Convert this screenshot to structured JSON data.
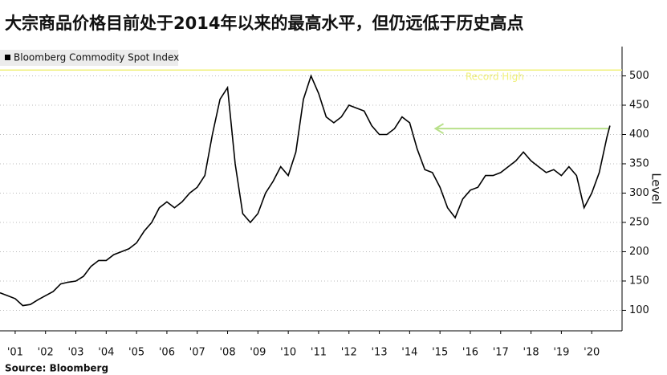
{
  "chart_data": {
    "type": "line",
    "title": "大宗商品价格目前处于2014年以来的最高水平，但仍远低于历史高点",
    "source": "Source: Bloomberg",
    "y_label": "Level",
    "series": [
      {
        "name": "Bloomberg Commodity Spot Index",
        "color": "#000000",
        "x": [
          2001.0,
          2001.25,
          2001.5,
          2001.75,
          2002.0,
          2002.25,
          2002.5,
          2002.75,
          2003.0,
          2003.25,
          2003.5,
          2003.75,
          2004.0,
          2004.25,
          2004.5,
          2004.75,
          2005.0,
          2005.25,
          2005.5,
          2005.75,
          2006.0,
          2006.25,
          2006.5,
          2006.75,
          2007.0,
          2007.25,
          2007.5,
          2007.75,
          2008.0,
          2008.25,
          2008.5,
          2008.75,
          2009.0,
          2009.25,
          2009.5,
          2009.75,
          2010.0,
          2010.25,
          2010.5,
          2010.75,
          2011.0,
          2011.25,
          2011.5,
          2011.75,
          2012.0,
          2012.25,
          2012.5,
          2012.75,
          2013.0,
          2013.25,
          2013.5,
          2013.75,
          2014.0,
          2014.25,
          2014.5,
          2014.75,
          2015.0,
          2015.25,
          2015.5,
          2015.75,
          2016.0,
          2016.25,
          2016.5,
          2016.75,
          2017.0,
          2017.25,
          2017.5,
          2017.75,
          2018.0,
          2018.25,
          2018.5,
          2018.75,
          2019.0,
          2019.25,
          2019.5,
          2019.75,
          2020.0,
          2020.25,
          2020.5,
          2020.75,
          2021.0,
          2021.1
        ],
        "values": [
          130,
          125,
          120,
          108,
          110,
          118,
          125,
          132,
          145,
          148,
          150,
          158,
          175,
          185,
          185,
          195,
          200,
          205,
          215,
          235,
          250,
          275,
          285,
          275,
          285,
          300,
          310,
          330,
          400,
          460,
          480,
          350,
          265,
          250,
          265,
          300,
          320,
          345,
          330,
          370,
          460,
          500,
          470,
          430,
          420,
          430,
          450,
          445,
          440,
          415,
          400,
          400,
          410,
          430,
          420,
          375,
          340,
          335,
          310,
          275,
          258,
          290,
          305,
          310,
          330,
          330,
          335,
          345,
          355,
          370,
          355,
          345,
          335,
          340,
          330,
          345,
          330,
          275,
          300,
          335,
          395,
          415
        ]
      }
    ],
    "annotations": [
      {
        "text": "Record High",
        "value": 510,
        "color": "#f0f07a"
      }
    ],
    "arrow": {
      "y": 410,
      "x": [
        2021.05,
        2015.35
      ],
      "color": "#b8e08a"
    },
    "xlim": [
      2001.0,
      2021.5
    ],
    "xticks": [
      {
        "value": 2001.5,
        "label": "'01"
      },
      {
        "value": 2002.5,
        "label": "'02"
      },
      {
        "value": 2003.5,
        "label": "'03"
      },
      {
        "value": 2004.5,
        "label": "'04"
      },
      {
        "value": 2005.5,
        "label": "'05"
      },
      {
        "value": 2006.5,
        "label": "'06"
      },
      {
        "value": 2007.5,
        "label": "'07"
      },
      {
        "value": 2008.5,
        "label": "'08"
      },
      {
        "value": 2009.5,
        "label": "'09"
      },
      {
        "value": 2010.5,
        "label": "'10"
      },
      {
        "value": 2011.5,
        "label": "'11"
      },
      {
        "value": 2012.5,
        "label": "'12"
      },
      {
        "value": 2013.5,
        "label": "'13"
      },
      {
        "value": 2014.5,
        "label": "'14"
      },
      {
        "value": 2015.5,
        "label": "'15"
      },
      {
        "value": 2016.5,
        "label": "'16"
      },
      {
        "value": 2017.5,
        "label": "'17"
      },
      {
        "value": 2018.5,
        "label": "'18"
      },
      {
        "value": 2019.5,
        "label": "'19"
      },
      {
        "value": 2020.5,
        "label": "'20"
      }
    ],
    "ylim": [
      65,
      550
    ],
    "yticks": [
      100,
      150,
      200,
      250,
      300,
      350,
      400,
      450,
      500
    ],
    "grid": true
  }
}
